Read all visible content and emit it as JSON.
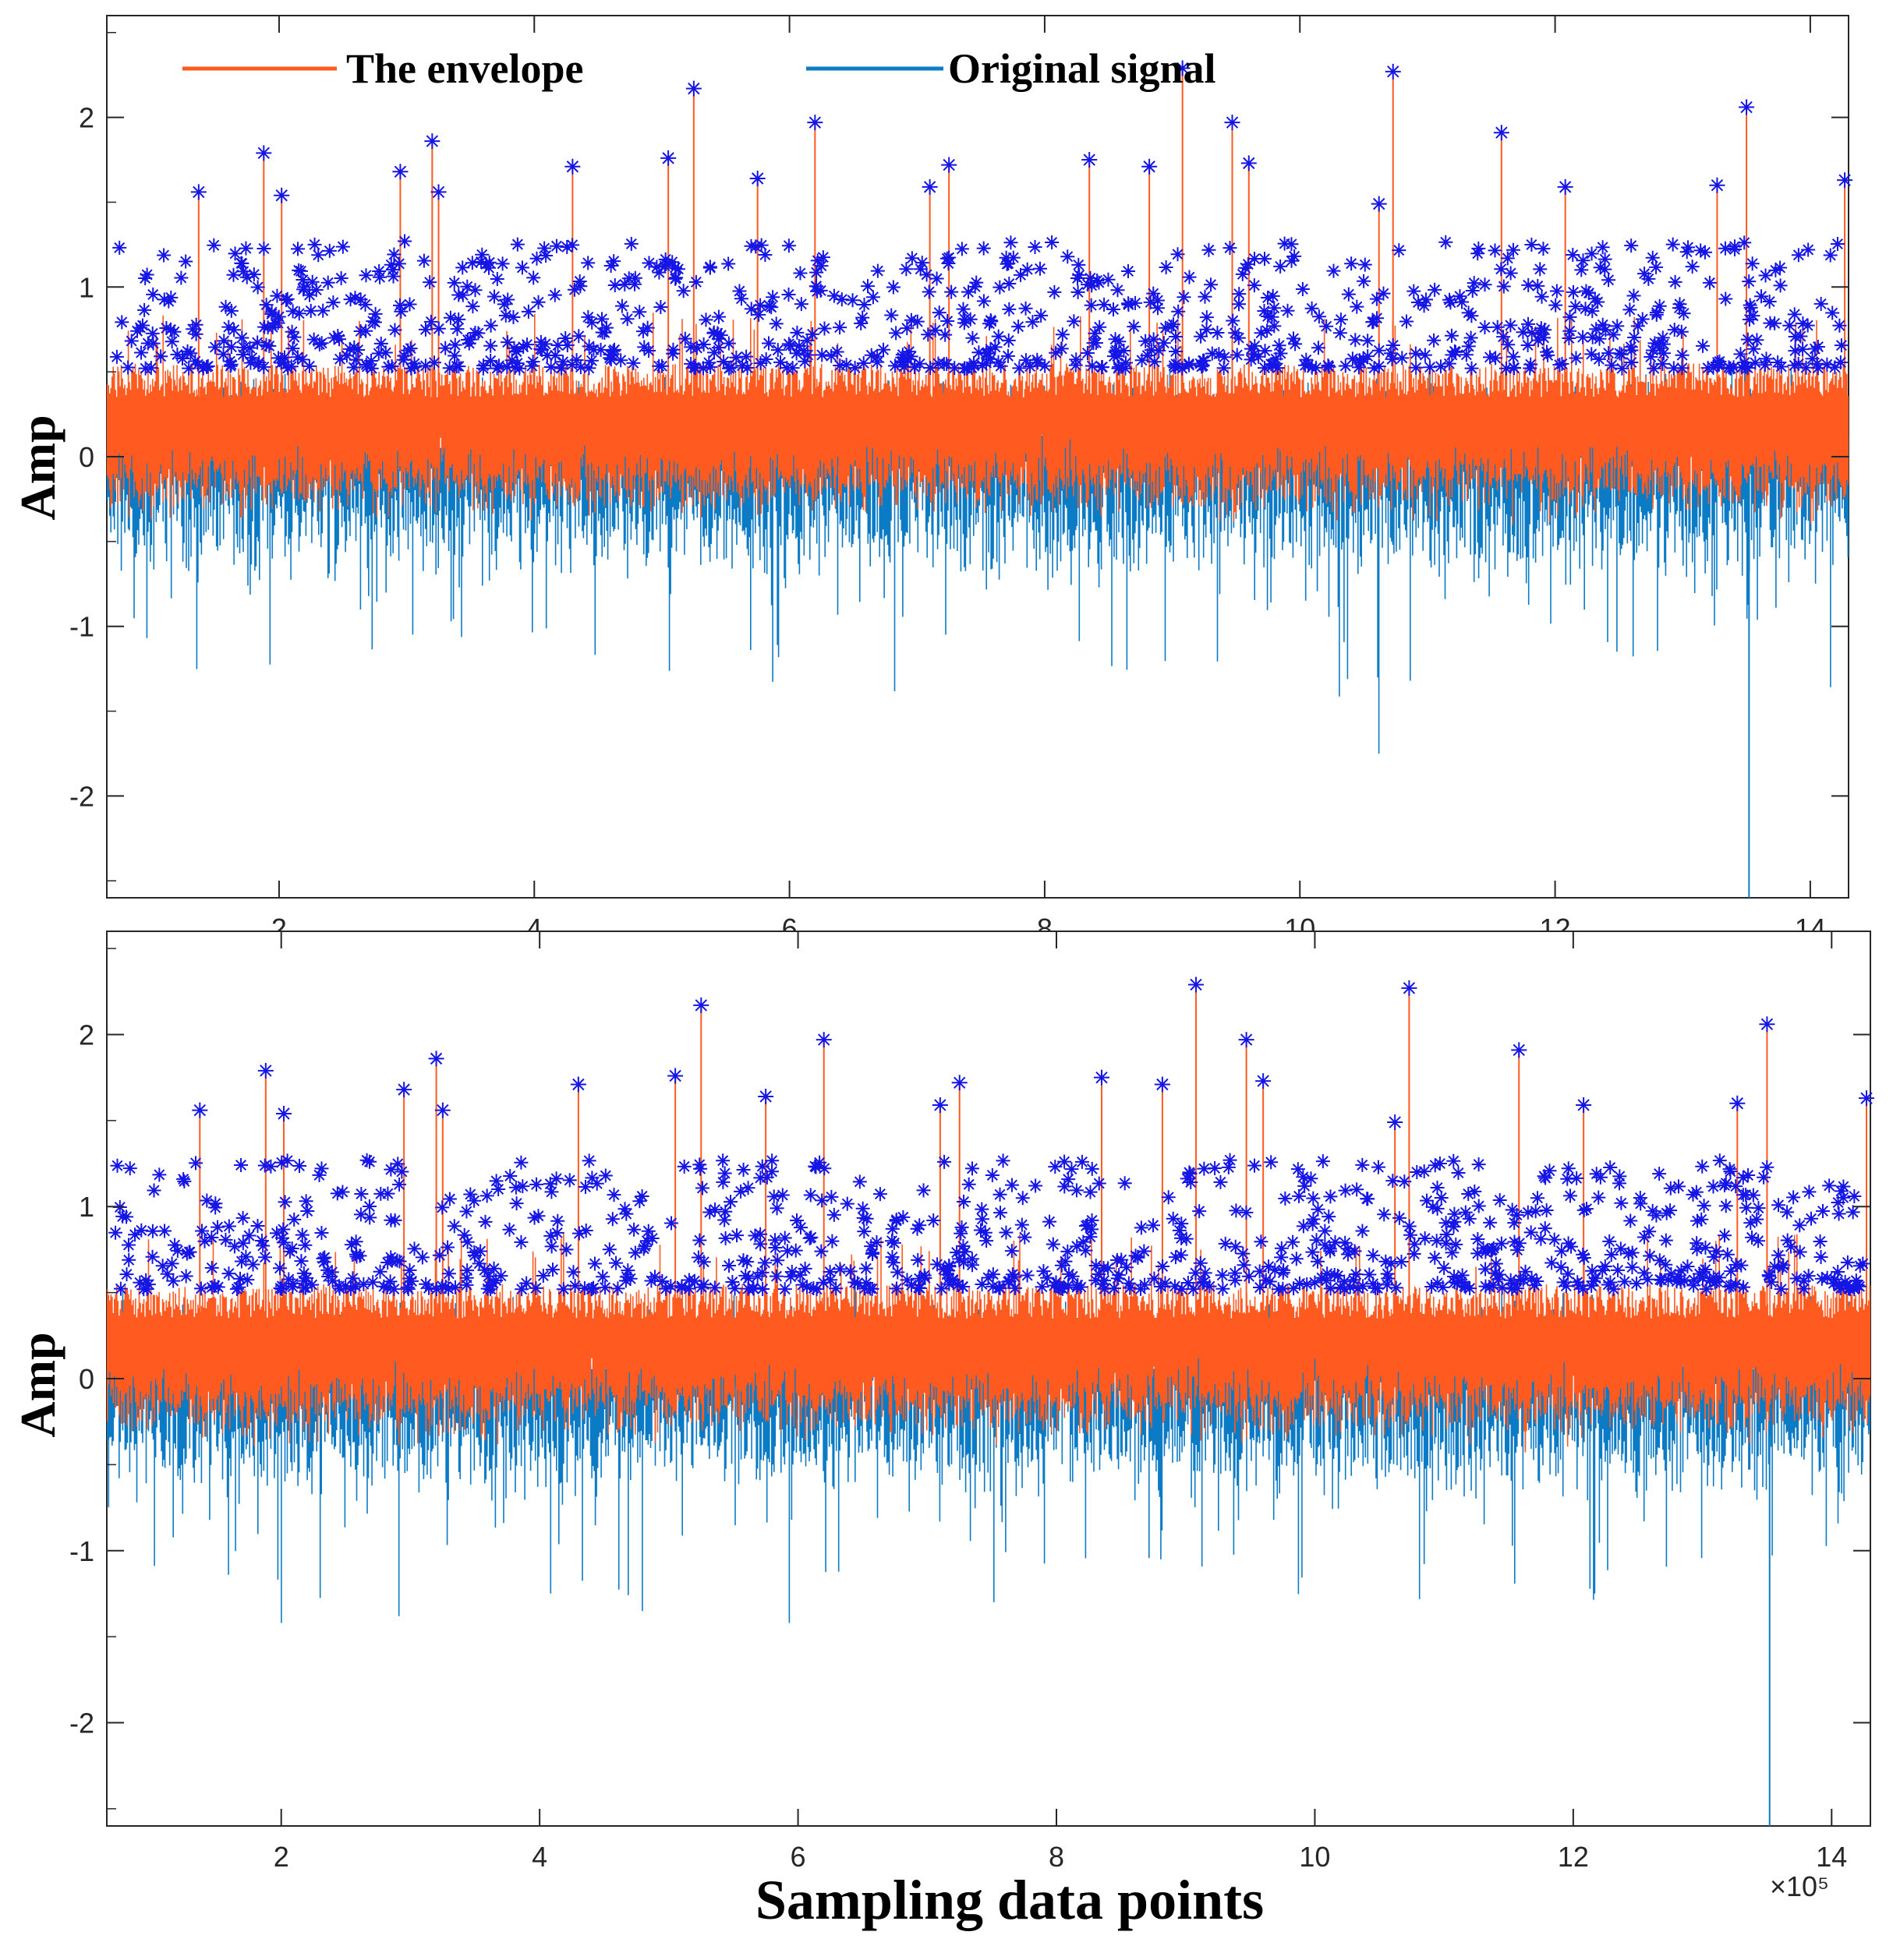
{
  "figure": {
    "xlabel": "Sampling data points",
    "x_exponent": "×10⁵",
    "colors": {
      "envelope": "#FF5A1F",
      "signal": "#0C7BC6",
      "peaks": "#1515E6",
      "axes": "#262626"
    }
  },
  "chart_data": [
    {
      "type": "line",
      "panel": "top",
      "ylabel": "Amp",
      "xlim": [
        0.65,
        14.3
      ],
      "ylim": [
        -2.6,
        2.6
      ],
      "xticks": [
        "2",
        "4",
        "6",
        "8",
        "10",
        "12",
        "14"
      ],
      "yticks": [
        "-2",
        "-1",
        "0",
        "1",
        "2"
      ],
      "legend": {
        "position": "top-left",
        "entries": [
          "The envelope",
          "Original signal"
        ]
      },
      "series": [
        {
          "name": "The envelope",
          "description": "upper envelope mostly between -0.5 and 1.2 with spikes at detected peaks"
        },
        {
          "name": "Original signal",
          "description": "noisy signal mostly between -1.2 and 0.8"
        },
        {
          "name": "Peaks",
          "x": [
            1.37,
            1.88,
            2.02,
            2.95,
            3.2,
            3.25,
            4.3,
            5.05,
            5.25,
            5.75,
            6.2,
            7.1,
            7.25,
            8.35,
            8.82,
            9.08,
            9.47,
            9.6,
            10.62,
            10.73,
            11.58,
            12.08,
            13.27,
            13.5,
            14.27
          ],
          "y": [
            1.56,
            1.79,
            1.54,
            1.68,
            1.86,
            1.56,
            1.71,
            1.76,
            2.17,
            1.64,
            1.97,
            1.59,
            1.72,
            1.75,
            1.71,
            2.29,
            1.97,
            1.73,
            1.49,
            2.27,
            1.91,
            1.59,
            1.6,
            2.06,
            1.63
          ]
        }
      ]
    },
    {
      "type": "line",
      "panel": "bottom",
      "ylabel": "Amp",
      "xlim": [
        0.65,
        14.3
      ],
      "ylim": [
        -2.6,
        2.6
      ],
      "xticks": [
        "2",
        "4",
        "6",
        "8",
        "10",
        "12",
        "14"
      ],
      "yticks": [
        "-2",
        "-1",
        "0",
        "1",
        "2"
      ],
      "series": [
        {
          "name": "The envelope",
          "description": "upper envelope mostly between -0.5 and 1.2 with spikes at detected peaks"
        },
        {
          "name": "Original signal",
          "description": "noisy signal mostly between -1.2 and 0.8"
        },
        {
          "name": "Peaks",
          "x": [
            1.37,
            1.88,
            2.02,
            2.95,
            3.2,
            3.25,
            4.3,
            5.05,
            5.25,
            5.75,
            6.2,
            7.1,
            7.25,
            8.35,
            8.82,
            9.08,
            9.47,
            9.6,
            10.62,
            10.73,
            11.58,
            12.08,
            13.27,
            13.5,
            14.27
          ],
          "y": [
            1.56,
            1.79,
            1.54,
            1.68,
            1.86,
            1.56,
            1.71,
            1.76,
            2.17,
            1.64,
            1.97,
            1.59,
            1.72,
            1.75,
            1.71,
            2.29,
            1.97,
            1.73,
            1.49,
            2.27,
            1.91,
            1.59,
            1.6,
            2.06,
            1.63
          ]
        }
      ]
    }
  ]
}
